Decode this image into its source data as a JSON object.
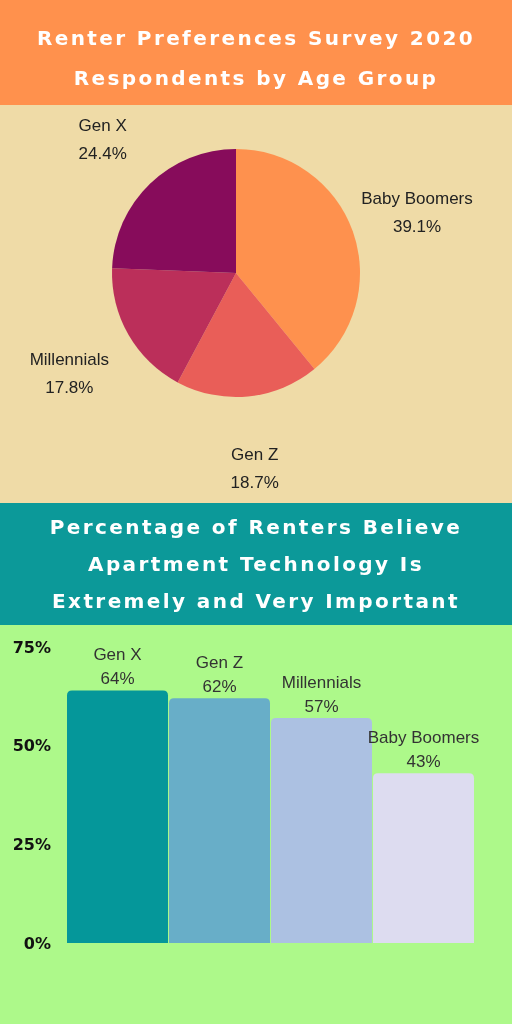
{
  "chart_data": [
    {
      "type": "pie",
      "title": "Renter Preferences Survey 2020",
      "subtitle": "Respondents by Age Group",
      "categories": [
        "Baby Boomers",
        "Gen Z",
        "Millennials",
        "Gen X"
      ],
      "values": [
        39.1,
        18.7,
        17.8,
        24.4
      ],
      "colors": [
        "#fe914e",
        "#e95e58",
        "#bb2f5a",
        "#870c5b"
      ],
      "value_labels": [
        "39.1%",
        "18.7%",
        "17.8%",
        "24.4%"
      ]
    },
    {
      "type": "bar",
      "title": "Percentage of Renters Believe Apartment Technology Is Extremely and Very Important",
      "categories": [
        "Gen X",
        "Gen Z",
        "Millennials",
        "Baby Boomers"
      ],
      "values": [
        64,
        62,
        57,
        43
      ],
      "colors": [
        "#05979a",
        "#68aec8",
        "#acc1e2",
        "#dddcf0"
      ],
      "value_labels": [
        "64%",
        "62%",
        "57%",
        "43%"
      ],
      "ylim": [
        0,
        75
      ],
      "yticks": [
        {
          "value": 0,
          "label": "0%"
        },
        {
          "value": 25,
          "label": "25%"
        },
        {
          "value": 50,
          "label": "50%"
        },
        {
          "value": 75,
          "label": "75%"
        }
      ]
    }
  ]
}
